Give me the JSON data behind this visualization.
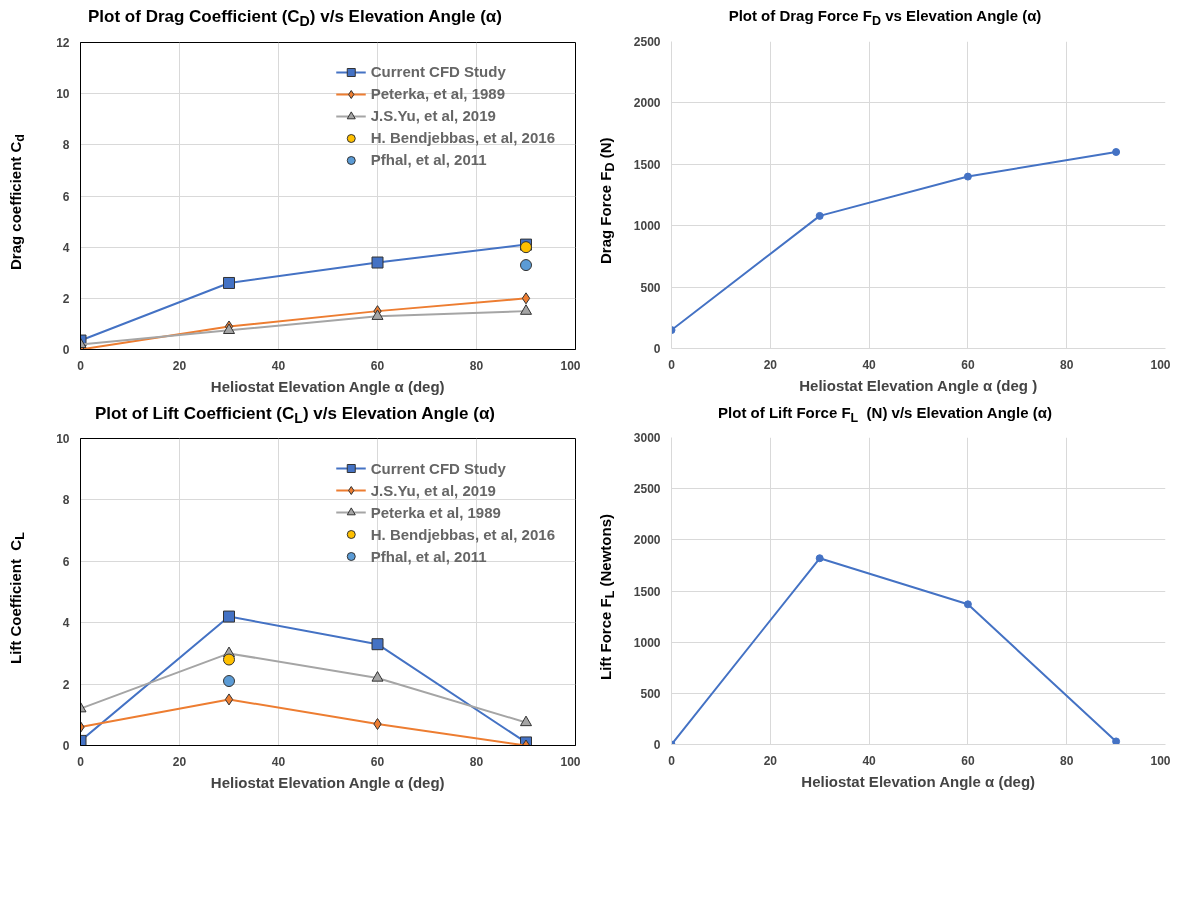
{
  "chart_data": [
    {
      "type": "line",
      "title": "Plot of Drag Coefficient (C$_{D}$) v/s Elevation Angle (α)",
      "xlabel": "Heliostat Elevation Angle α (deg)",
      "ylabel": "Drag coefficient C$_{d}$",
      "x": [
        0,
        30,
        60,
        90
      ],
      "xlim": [
        0,
        100
      ],
      "xticks": [
        0,
        20,
        40,
        60,
        80,
        100
      ],
      "ylim": [
        0,
        12
      ],
      "yticks": [
        0,
        2,
        4,
        6,
        8,
        10,
        12
      ],
      "grid": true,
      "legend": "top right",
      "line_style": "solid",
      "series": [
        {
          "name": "Current CFD Study",
          "color": "#4472c4",
          "marker": "square",
          "values": [
            0.35,
            2.6,
            3.4,
            4.1
          ]
        },
        {
          "name": "Peterka, et al, 1989",
          "color": "#ed7d31",
          "marker": "diamond",
          "values": [
            0.0,
            0.9,
            1.5,
            2.0
          ]
        },
        {
          "name": "J.S.Yu, et al, 2019",
          "color": "#a5a5a5",
          "marker": "triangle",
          "values": [
            0.2,
            0.75,
            1.3,
            1.5
          ]
        },
        {
          "name": "H. Bendjebbas, et al, 2016",
          "color": "#ffc000",
          "marker": "circle",
          "type": "scatter",
          "values": [
            null,
            null,
            null,
            4.0
          ]
        },
        {
          "name": "Pfhal, et al, 2011",
          "color": "#5b9bd5",
          "marker": "circle",
          "type": "scatter",
          "values": [
            null,
            null,
            null,
            3.3
          ]
        }
      ]
    },
    {
      "type": "line",
      "title": "Plot of Drag Force F$_{D}$ vs Elevation Angle (α)",
      "xlabel": "Heliostat Elevation Angle α (deg )",
      "ylabel": "Drag Force F$_{D}$ (N)",
      "x": [
        0,
        30,
        60,
        90
      ],
      "xlim": [
        0,
        100
      ],
      "xticks": [
        0,
        20,
        40,
        60,
        80,
        100
      ],
      "ylim": [
        0,
        2500
      ],
      "yticks": [
        0,
        500,
        1000,
        1500,
        2000,
        2500
      ],
      "grid": true,
      "marker": "circle",
      "line_style": "solid",
      "series": [
        {
          "color": "#4472c4",
          "values": [
            150,
            1080,
            1400,
            1600
          ]
        }
      ]
    },
    {
      "type": "line",
      "title": "Plot of Lift Coefficient (C$_{L}$) v/s Elevation Angle (α)",
      "xlabel": "Heliostat Elevation Angle α (deg)",
      "ylabel": "Lift Coefficient  C$_{L}$",
      "x": [
        0,
        30,
        60,
        90
      ],
      "xlim": [
        0,
        100
      ],
      "xticks": [
        0,
        20,
        40,
        60,
        80,
        100
      ],
      "ylim": [
        0,
        10
      ],
      "yticks": [
        0,
        2,
        4,
        6,
        8,
        10
      ],
      "grid": true,
      "legend": "top right",
      "line_style": "solid",
      "series": [
        {
          "name": "Current CFD Study",
          "color": "#4472c4",
          "marker": "square",
          "values": [
            0.15,
            4.2,
            3.3,
            0.1
          ]
        },
        {
          "name": "J.S.Yu, et al, 2019",
          "color": "#ed7d31",
          "marker": "diamond",
          "values": [
            0.6,
            1.5,
            0.7,
            0.0
          ]
        },
        {
          "name": "Peterka et al, 1989",
          "color": "#a5a5a5",
          "marker": "triangle",
          "values": [
            1.2,
            3.0,
            2.2,
            0.75
          ]
        },
        {
          "name": "H. Bendjebbas, et al, 2016",
          "color": "#ffc000",
          "marker": "circle",
          "type": "scatter",
          "values": [
            null,
            2.8,
            null,
            null
          ]
        },
        {
          "name": "Pfhal, et al, 2011",
          "color": "#5b9bd5",
          "marker": "circle",
          "type": "scatter",
          "values": [
            null,
            2.1,
            null,
            null
          ]
        }
      ]
    },
    {
      "type": "line",
      "title": "Plot of Lift Force F$_{L}$  (N) v/s Elevation Angle (α)",
      "xlabel": "Heliostat Elevation Angle α (deg)",
      "ylabel": "Lift Force F$_{L}$ (Newtons)",
      "x": [
        0,
        30,
        60,
        90
      ],
      "xlim": [
        0,
        100
      ],
      "xticks": [
        0,
        20,
        40,
        60,
        80,
        100
      ],
      "ylim": [
        0,
        3000
      ],
      "yticks": [
        0,
        500,
        1000,
        1500,
        2000,
        2500,
        3000
      ],
      "grid": true,
      "marker": "circle",
      "line_style": "solid",
      "series": [
        {
          "color": "#4472c4",
          "values": [
            0,
            1820,
            1370,
            30
          ]
        }
      ]
    }
  ]
}
